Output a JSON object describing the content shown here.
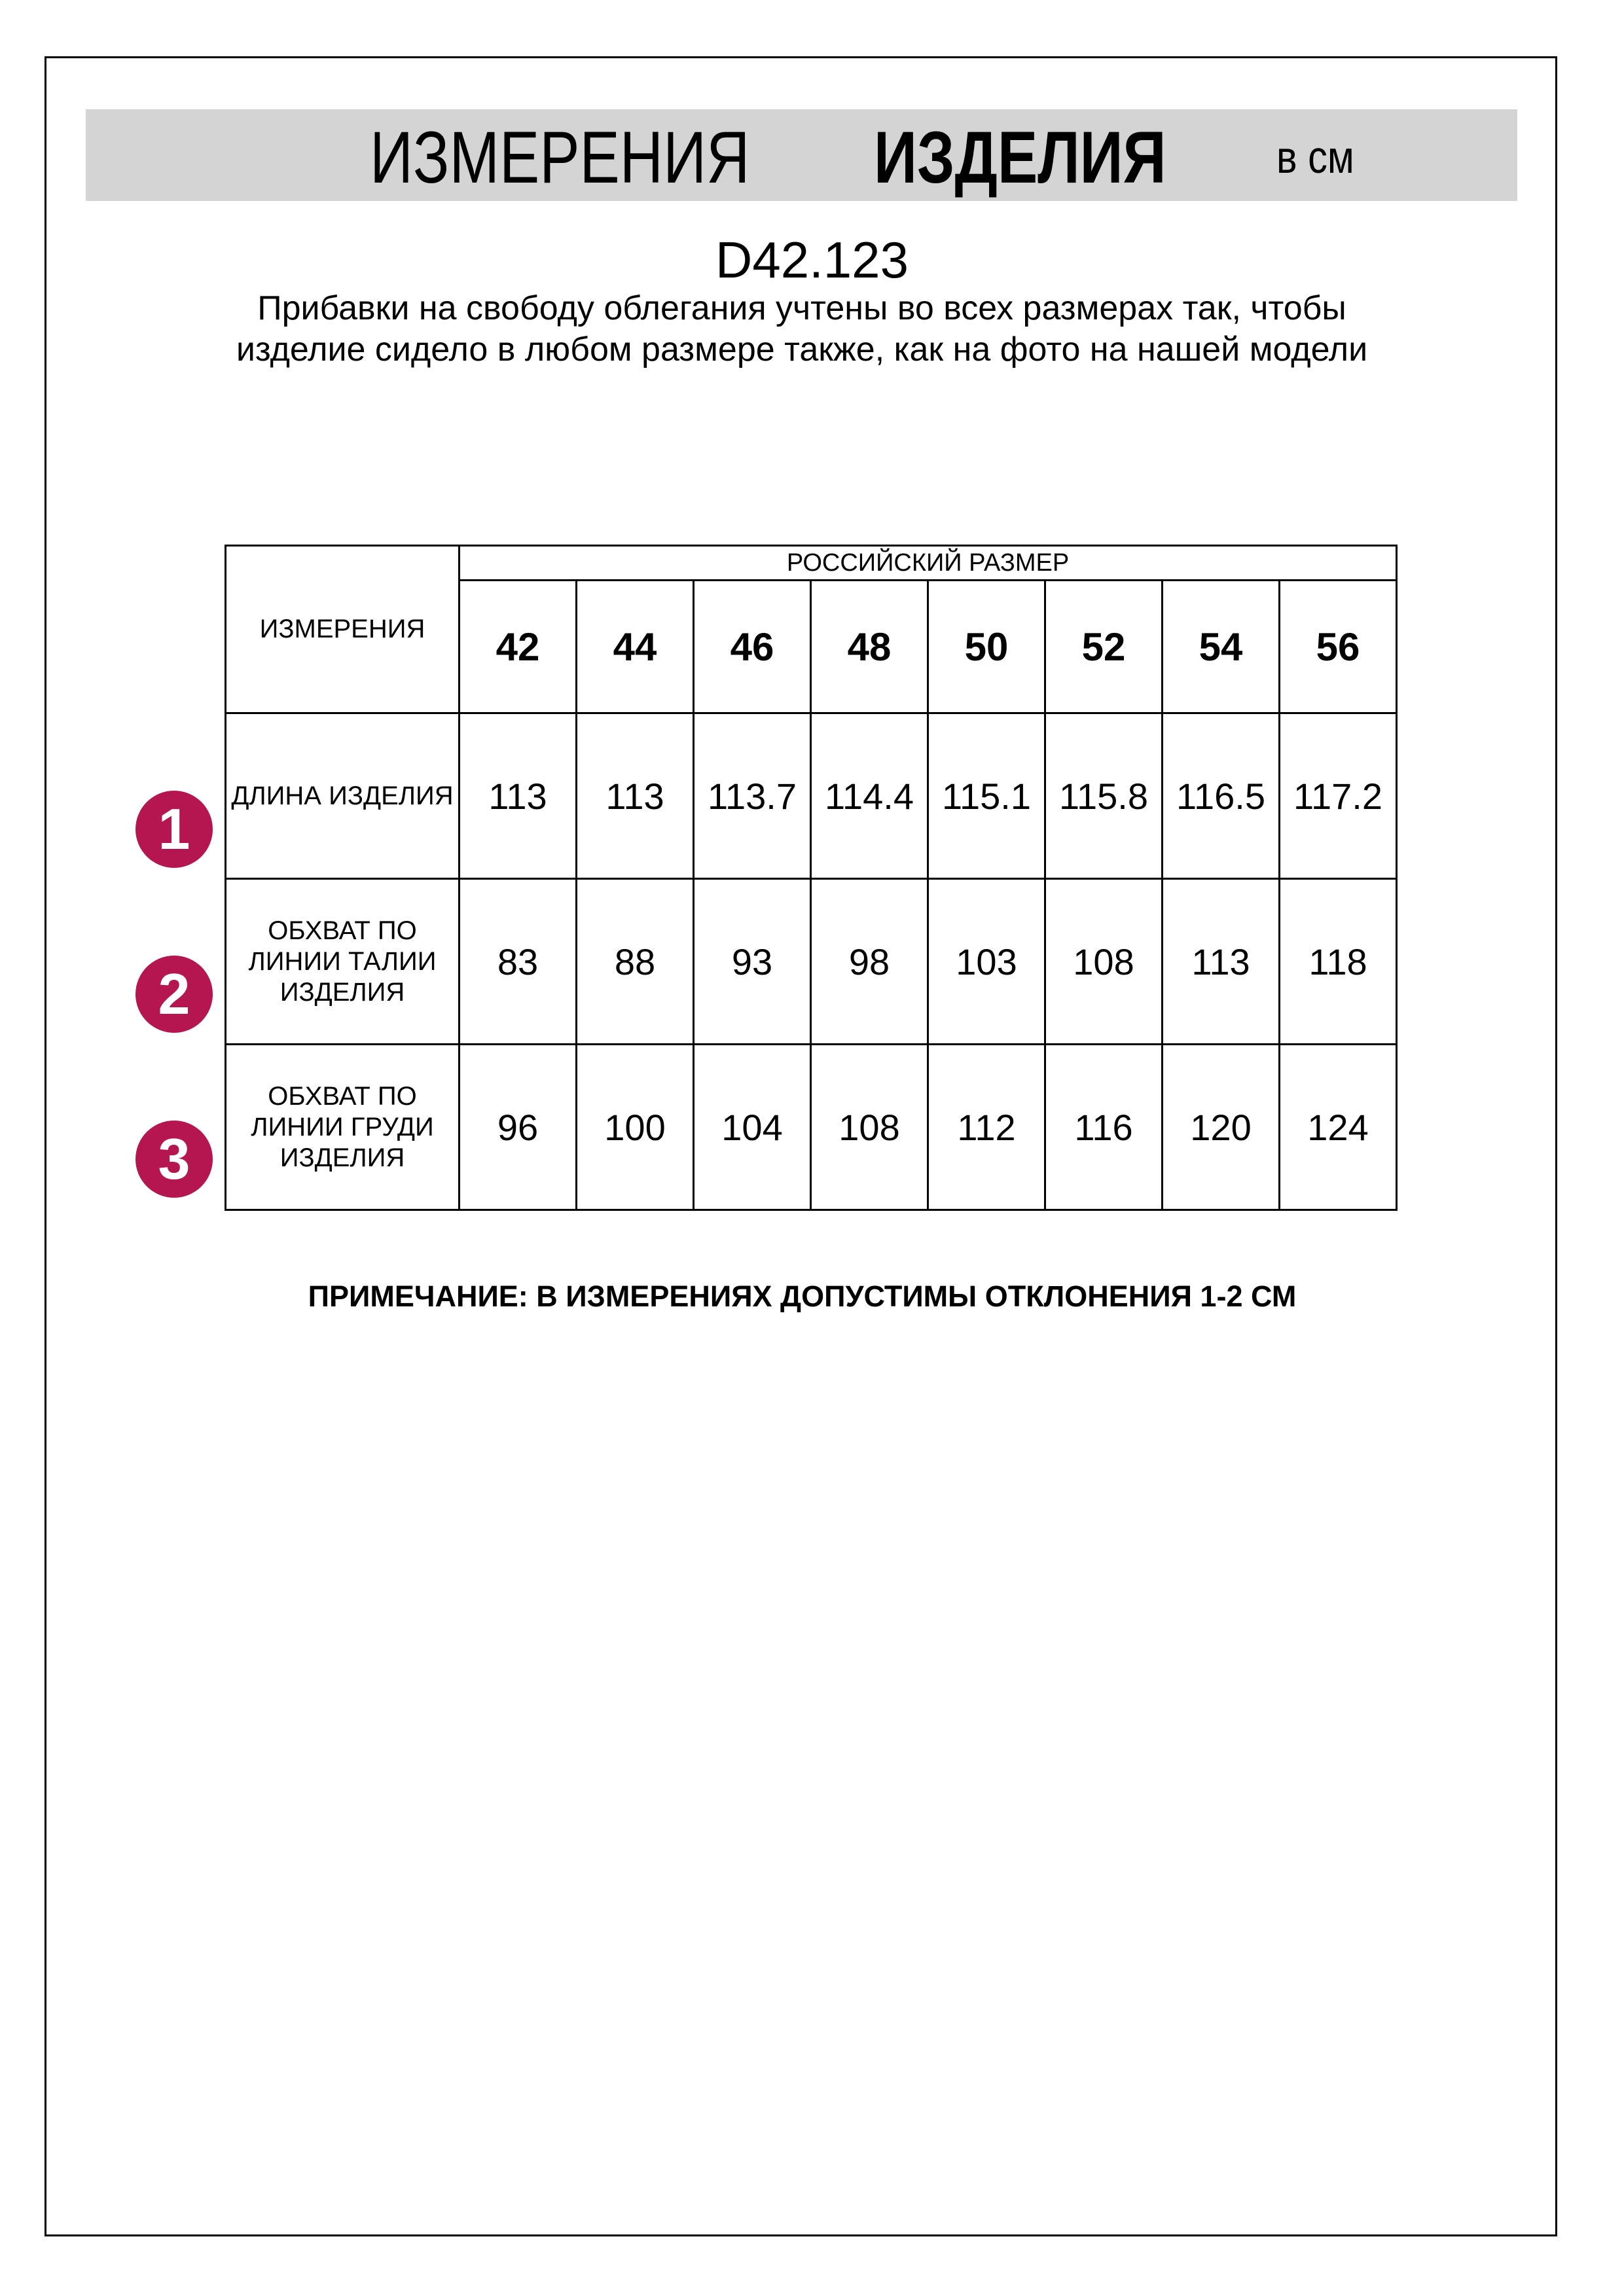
{
  "header": {
    "title_regular": "ИЗМЕРЕНИЯ",
    "title_bold": "ИЗДЕЛИЯ",
    "unit": "в см",
    "band_color": "#d4d4d4"
  },
  "product_code": "D42.123",
  "subtitle": "Прибавки на свободу облегания учтены во всех размерах так, чтобы изделие сидело в любом размере также, как на фото на нашей модели",
  "table": {
    "measure_header": "ИЗМЕРЕНИЯ",
    "size_group_header": "РОССИЙСКИЙ РАЗМЕР",
    "sizes": [
      "42",
      "44",
      "46",
      "48",
      "50",
      "52",
      "54",
      "56"
    ],
    "rows": [
      {
        "badge": "1",
        "label": "ДЛИНА ИЗДЕЛИЯ",
        "values": [
          "113",
          "113",
          "113.7",
          "114.4",
          "115.1",
          "115.8",
          "116.5",
          "117.2"
        ]
      },
      {
        "badge": "2",
        "label": "ОБХВАТ ПО ЛИНИИ ТАЛИИ ИЗДЕЛИЯ",
        "values": [
          "83",
          "88",
          "93",
          "98",
          "103",
          "108",
          "113",
          "118"
        ]
      },
      {
        "badge": "3",
        "label": "ОБХВАТ ПО ЛИНИИ ГРУДИ ИЗДЕЛИЯ",
        "values": [
          "96",
          "100",
          "104",
          "108",
          "112",
          "116",
          "120",
          "124"
        ]
      }
    ]
  },
  "badge_color": "#b5164f",
  "note": "ПРИМЕЧАНИЕ: В ИЗМЕРЕНИЯХ ДОПУСТИМЫ ОТКЛОНЕНИЯ 1-2 СМ"
}
